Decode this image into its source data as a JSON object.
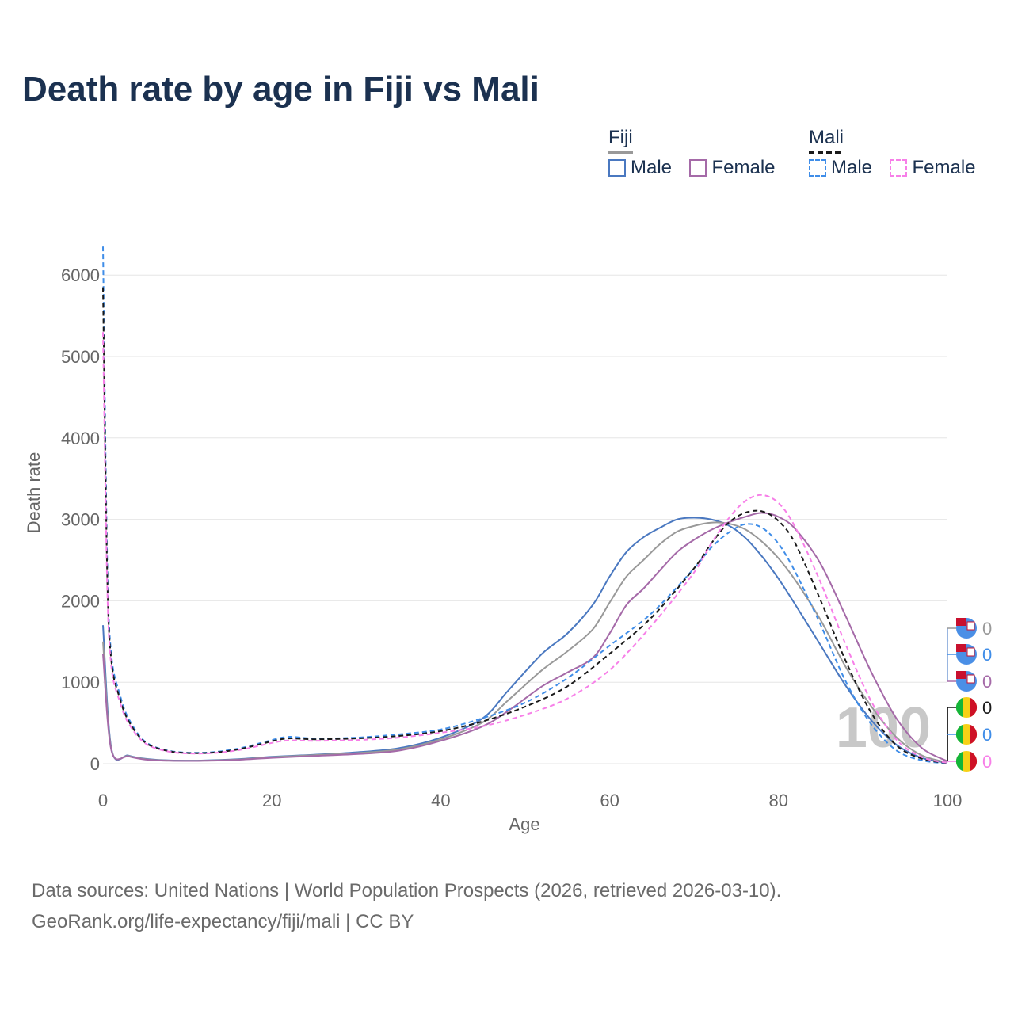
{
  "title": "Death rate by age in Fiji vs Mali",
  "legend": {
    "groups": [
      {
        "name": "Fiji",
        "line": "solid",
        "items": [
          {
            "label": "Male",
            "color": "#4a78c0"
          },
          {
            "label": "Female",
            "color": "#a56aa8"
          }
        ]
      },
      {
        "name": "Mali",
        "line": "dashed",
        "items": [
          {
            "label": "Male",
            "color": "#3f8de8"
          },
          {
            "label": "Female",
            "color": "#f77fe8"
          }
        ]
      }
    ]
  },
  "chart_data": {
    "type": "line",
    "title": "Death rate by age in Fiji vs Mali",
    "xlabel": "Age",
    "ylabel": "Death rate",
    "xlim": [
      0,
      100
    ],
    "ylim": [
      0,
      6500
    ],
    "xticks": [
      0,
      20,
      40,
      60,
      80,
      100
    ],
    "yticks": [
      0,
      1000,
      2000,
      3000,
      4000,
      5000,
      6000
    ],
    "grid": true,
    "annotation": "100",
    "series": [
      {
        "name": "Fiji Male",
        "country": "Fiji",
        "sex": "Male",
        "color": "#4a78c0",
        "dash": false,
        "x": [
          0,
          1,
          3,
          5,
          8,
          12,
          16,
          20,
          25,
          30,
          35,
          40,
          45,
          48,
          52,
          55,
          58,
          60,
          62,
          64,
          66,
          68,
          70,
          72,
          74,
          76,
          78,
          80,
          82,
          85,
          88,
          91,
          94,
          97,
          100
        ],
        "y": [
          1700,
          180,
          100,
          60,
          40,
          40,
          55,
          85,
          110,
          140,
          190,
          320,
          560,
          900,
          1350,
          1600,
          1950,
          2300,
          2600,
          2780,
          2900,
          3000,
          3020,
          3000,
          2930,
          2780,
          2550,
          2270,
          1950,
          1450,
          950,
          530,
          230,
          70,
          10
        ]
      },
      {
        "name": "Fiji Both",
        "country": "Fiji",
        "sex": "Both",
        "color": "#999999",
        "dash": false,
        "x": [
          0,
          1,
          3,
          5,
          8,
          12,
          16,
          20,
          25,
          30,
          35,
          40,
          45,
          48,
          52,
          55,
          58,
          60,
          62,
          64,
          66,
          68,
          70,
          72,
          74,
          76,
          78,
          80,
          82,
          85,
          88,
          91,
          94,
          97,
          100
        ],
        "y": [
          1500,
          170,
          95,
          55,
          38,
          38,
          52,
          80,
          105,
          130,
          175,
          300,
          510,
          780,
          1150,
          1380,
          1650,
          1980,
          2300,
          2500,
          2700,
          2850,
          2920,
          2960,
          2950,
          2880,
          2730,
          2520,
          2250,
          1760,
          1180,
          700,
          320,
          100,
          15
        ]
      },
      {
        "name": "Fiji Female",
        "country": "Fiji",
        "sex": "Female",
        "color": "#a56aa8",
        "dash": false,
        "x": [
          0,
          1,
          3,
          5,
          8,
          12,
          16,
          20,
          25,
          30,
          35,
          40,
          45,
          48,
          52,
          55,
          58,
          60,
          62,
          64,
          66,
          68,
          70,
          72,
          74,
          76,
          78,
          80,
          82,
          85,
          88,
          91,
          94,
          97,
          100
        ],
        "y": [
          1350,
          160,
          90,
          52,
          36,
          36,
          48,
          72,
          95,
          118,
          160,
          280,
          460,
          650,
          950,
          1120,
          1300,
          1600,
          1950,
          2150,
          2380,
          2600,
          2750,
          2870,
          2960,
          3030,
          3080,
          3030,
          2880,
          2450,
          1800,
          1120,
          550,
          190,
          30
        ]
      },
      {
        "name": "Mali Male",
        "country": "Mali",
        "sex": "Male",
        "color": "#3f8de8",
        "dash": true,
        "x": [
          0,
          0.5,
          1,
          2,
          3,
          5,
          8,
          12,
          16,
          20,
          22,
          25,
          30,
          35,
          40,
          45,
          50,
          55,
          60,
          65,
          70,
          72,
          74,
          76,
          78,
          80,
          82,
          85,
          88,
          91,
          94,
          97,
          100
        ],
        "y": [
          6350,
          2500,
          1320,
          850,
          560,
          270,
          155,
          135,
          185,
          290,
          330,
          310,
          320,
          360,
          420,
          560,
          750,
          1050,
          1450,
          1850,
          2400,
          2650,
          2830,
          2940,
          2900,
          2700,
          2350,
          1700,
          1000,
          480,
          160,
          40,
          5
        ]
      },
      {
        "name": "Mali Both",
        "country": "Mali",
        "sex": "Both",
        "color": "#1a1a1a",
        "dash": true,
        "x": [
          0,
          0.5,
          1,
          2,
          3,
          5,
          8,
          12,
          16,
          20,
          22,
          25,
          30,
          35,
          40,
          45,
          50,
          55,
          60,
          65,
          70,
          72,
          74,
          76,
          78,
          80,
          82,
          85,
          88,
          91,
          94,
          97,
          100
        ],
        "y": [
          5850,
          2350,
          1250,
          800,
          530,
          260,
          150,
          130,
          175,
          275,
          310,
          300,
          310,
          340,
          400,
          520,
          700,
          950,
          1350,
          1800,
          2400,
          2700,
          2950,
          3080,
          3100,
          2980,
          2700,
          2000,
          1250,
          620,
          220,
          60,
          8
        ]
      },
      {
        "name": "Mali Female",
        "country": "Mali",
        "sex": "Female",
        "color": "#f77fe8",
        "dash": true,
        "x": [
          0,
          0.5,
          1,
          2,
          3,
          5,
          8,
          12,
          16,
          20,
          22,
          25,
          30,
          35,
          40,
          45,
          50,
          55,
          60,
          65,
          70,
          72,
          74,
          76,
          78,
          80,
          82,
          85,
          88,
          91,
          94,
          97,
          100
        ],
        "y": [
          5300,
          2200,
          1180,
          760,
          500,
          250,
          145,
          125,
          165,
          255,
          285,
          280,
          290,
          320,
          380,
          460,
          600,
          800,
          1150,
          1700,
          2350,
          2700,
          3000,
          3220,
          3300,
          3200,
          2900,
          2220,
          1450,
          760,
          290,
          80,
          10
        ]
      }
    ]
  },
  "end_labels": [
    {
      "country": "Fiji",
      "value": "0",
      "color": "#999999"
    },
    {
      "country": "Fiji",
      "value": "0",
      "color": "#3f8de8"
    },
    {
      "country": "Fiji",
      "value": "0",
      "color": "#a56aa8"
    },
    {
      "country": "Mali",
      "value": "0",
      "color": "#1a1a1a"
    },
    {
      "country": "Mali",
      "value": "0",
      "color": "#3f8de8"
    },
    {
      "country": "Mali",
      "value": "0",
      "color": "#f77fe8"
    }
  ],
  "footer": {
    "line1": "Data sources: United Nations | World Population Prospects (2026, retrieved 2026-03-10).",
    "line2": "GeoRank.org/life-expectancy/fiji/mali | CC BY"
  }
}
